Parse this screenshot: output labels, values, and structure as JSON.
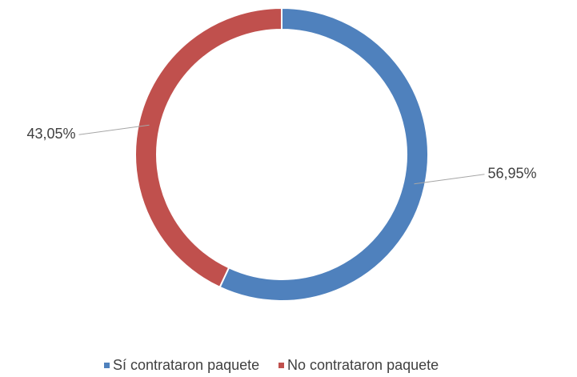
{
  "chart_data": {
    "type": "donut",
    "categories": [
      "Sí contrataron paquete",
      "No contrataron paquete"
    ],
    "values": [
      56.95,
      43.05
    ],
    "value_labels": [
      "56,95%",
      "43,05%"
    ],
    "colors": [
      "#4f81bd",
      "#c0504d"
    ],
    "legend": "bottom"
  }
}
